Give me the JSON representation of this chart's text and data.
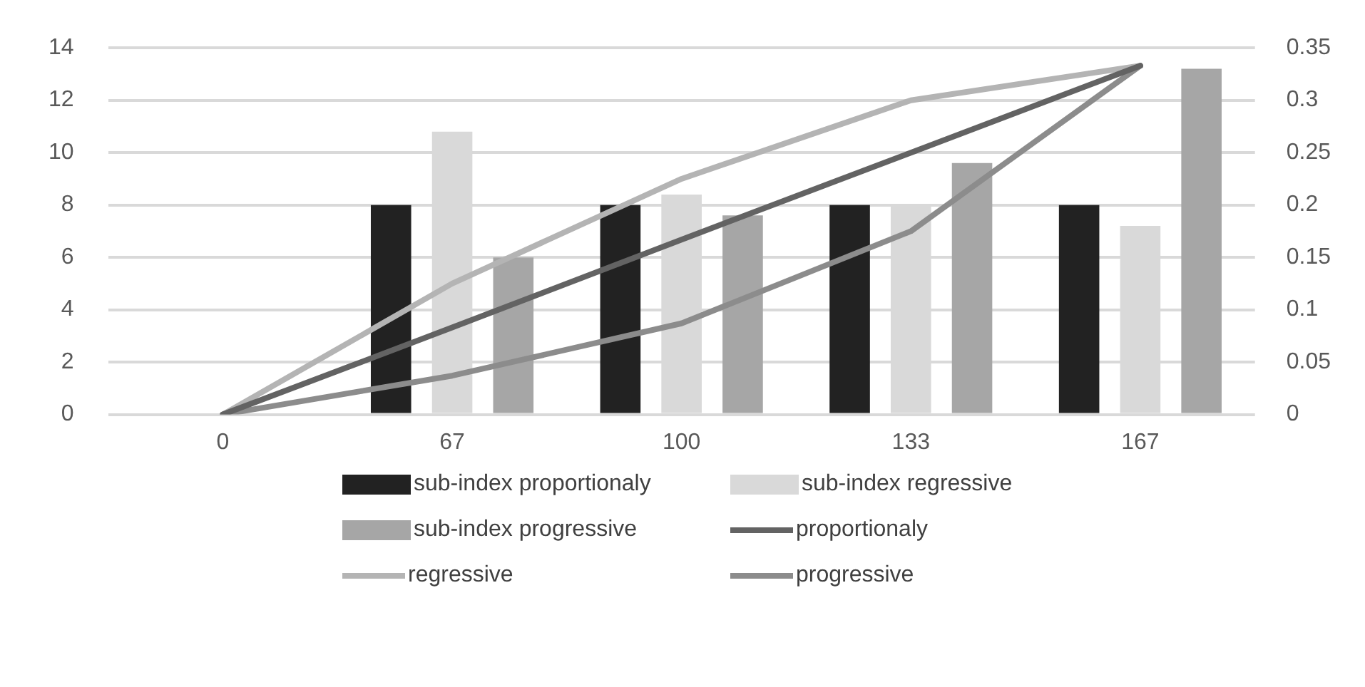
{
  "chart_data": {
    "type": "bar",
    "categories": [
      "0",
      "67",
      "100",
      "133",
      "167"
    ],
    "series": [
      {
        "name": "sub-index proportionaly",
        "color": "#222222",
        "values": [
          null,
          8,
          8,
          8,
          8
        ]
      },
      {
        "name": "sub-index regressive",
        "color": "#d9d9d9",
        "values": [
          null,
          10.8,
          8.4,
          8,
          7.2
        ]
      },
      {
        "name": "sub-index progressive",
        "color": "#a6a6a6",
        "values": [
          null,
          6,
          7.6,
          9.6,
          13.2
        ]
      },
      {
        "name": "proportionaly",
        "type": "line",
        "axis": "y2",
        "color": "#636363",
        "values": [
          0,
          0.083,
          0.167,
          0.25,
          0.333
        ]
      },
      {
        "name": "regressive",
        "type": "line",
        "axis": "y2",
        "color": "#b4b4b4",
        "values": [
          0,
          0.125,
          0.225,
          0.3,
          0.333
        ]
      },
      {
        "name": "progressive",
        "type": "line",
        "axis": "y2",
        "color": "#8c8c8c",
        "values": [
          0,
          0.037,
          0.087,
          0.175,
          0.333
        ]
      }
    ],
    "ylim": [
      0,
      14
    ],
    "yticks": [
      0,
      2,
      4,
      6,
      8,
      10,
      12,
      14
    ],
    "y2lim": [
      0,
      0.35
    ],
    "y2ticks": [
      0,
      0.05,
      0.1,
      0.15,
      0.2,
      0.25,
      0.3,
      0.35
    ],
    "grid": "y",
    "legend": "bottom",
    "marker": "none",
    "line_style": "solid"
  }
}
